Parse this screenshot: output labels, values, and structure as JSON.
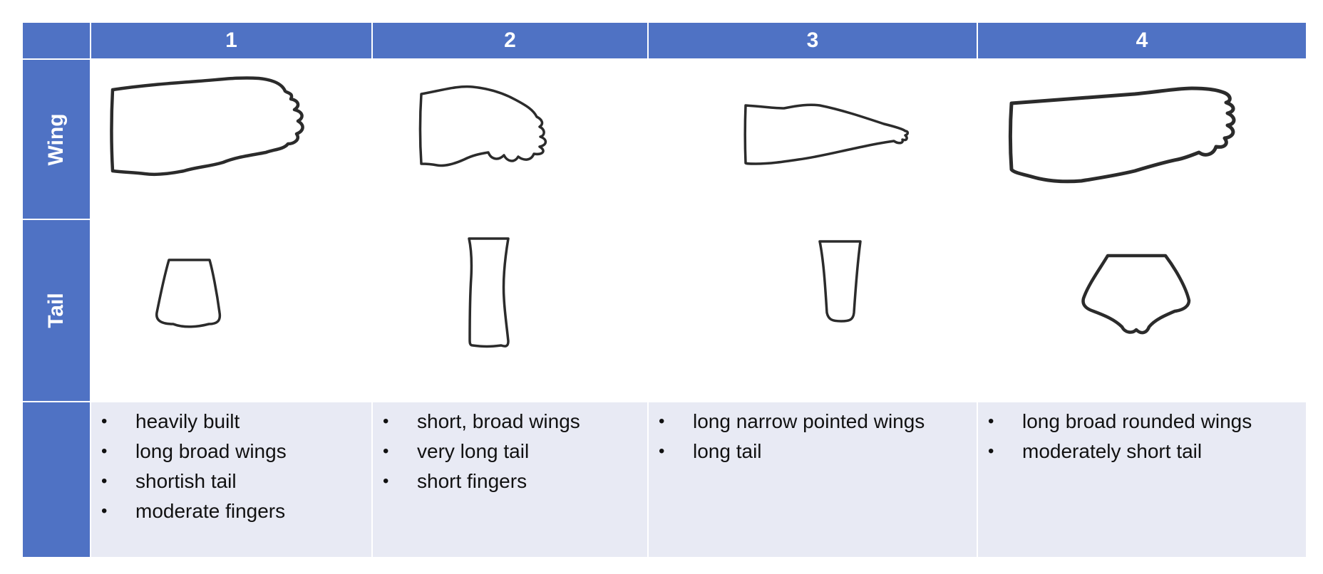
{
  "table": {
    "columns": [
      "1",
      "2",
      "3",
      "4"
    ],
    "rows": {
      "wing": "Wing",
      "tail": "Tail"
    },
    "descriptions": [
      [
        "heavily built",
        "long broad wings",
        "shortish tail",
        "moderate fingers"
      ],
      [
        "short, broad wings",
        "very long tail",
        "short fingers"
      ],
      [
        "long narrow pointed wings",
        "long tail"
      ],
      [
        "long broad rounded wings",
        "moderately short tail"
      ]
    ]
  },
  "colors": {
    "header_blue": "#4f72c4",
    "description_background": "#e8eaf4",
    "outline": "#2b2b2b"
  }
}
